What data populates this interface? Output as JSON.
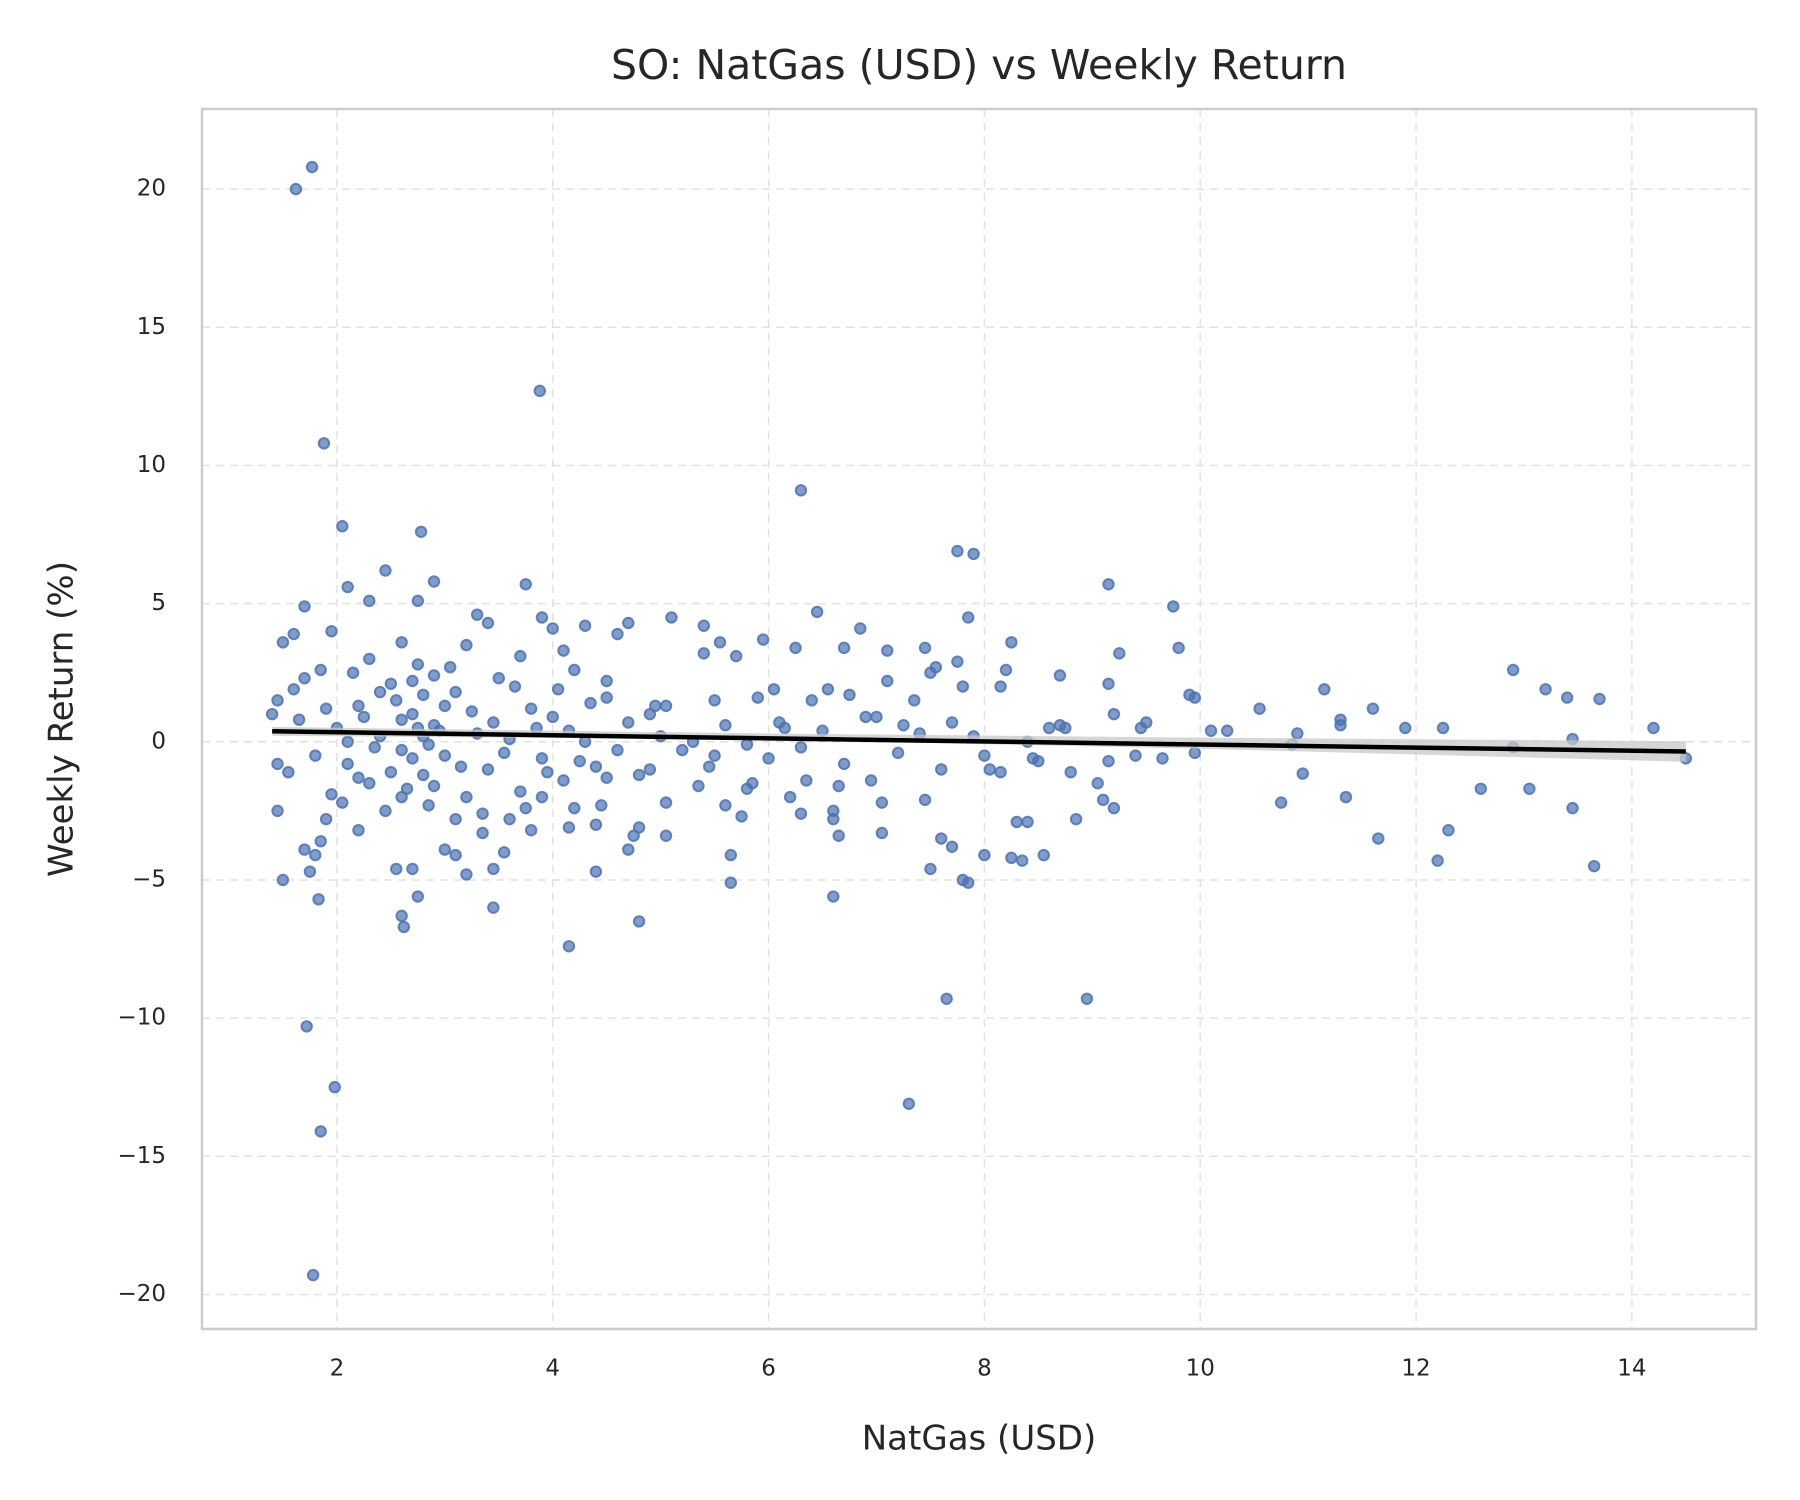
{
  "chart_data": {
    "type": "scatter",
    "title": "SO: NatGas (USD) vs Weekly Return",
    "xlabel": "NatGas (USD)",
    "ylabel": "Weekly Return (%)",
    "xlim": [
      0.75,
      15.15
    ],
    "ylim": [
      -21.25,
      22.9
    ],
    "xticks": [
      2,
      4,
      6,
      8,
      10,
      12,
      14
    ],
    "yticks": [
      {
        "value": -20,
        "label": "−20"
      },
      {
        "value": -15,
        "label": "−15"
      },
      {
        "value": -10,
        "label": "−10"
      },
      {
        "value": -5,
        "label": "−5"
      },
      0,
      5,
      10,
      15,
      20
    ],
    "grid": true,
    "series": [
      {
        "color": "#4c72b0",
        "x": [
          1.62,
          1.77,
          3.88,
          1.88,
          2.05,
          2.78,
          6.3,
          7.75,
          7.9,
          9.15,
          3.75,
          1.72,
          1.98,
          1.85,
          1.78,
          7.3,
          7.65,
          8.95,
          4.15,
          4.8,
          2.6,
          2.62,
          3.45,
          6.6,
          5.65,
          7.8,
          7.85,
          1.83,
          13.65,
          12.2,
          8.25,
          8.35,
          8.55,
          9.75,
          9.8,
          12.9,
          13.2,
          11.15,
          13.4,
          13.7,
          14.2,
          14.5,
          13.45,
          13.45,
          13.05,
          12.9,
          12.6,
          12.3,
          12.25,
          11.9,
          11.6,
          11.65,
          11.35,
          11.3,
          11.3,
          10.95,
          10.9,
          10.85,
          10.75,
          10.55,
          10.25,
          10.1,
          9.95,
          9.95,
          9.9,
          9.65,
          9.5,
          9.4,
          9.45,
          9.25,
          9.2,
          9.15,
          9.15,
          9.2,
          9.1,
          9.05,
          8.85,
          8.8,
          8.7,
          8.7,
          8.75,
          8.6,
          8.5,
          8.45,
          8.4,
          8.3,
          8.4,
          8.25,
          8.2,
          8.15,
          8.15,
          8.05,
          8.0,
          8.0,
          7.85,
          7.8,
          7.75,
          7.7,
          7.7,
          7.6,
          7.55,
          7.5,
          7.5,
          7.45,
          7.45,
          7.35,
          7.25,
          7.1,
          7.1,
          7.0,
          7.05,
          7.05,
          6.95,
          6.85,
          6.75,
          6.7,
          6.65,
          6.65,
          6.6,
          6.6,
          6.55,
          6.45,
          6.4,
          6.35,
          6.3,
          6.25,
          6.2,
          6.15,
          6.05,
          6.0,
          5.95,
          5.9,
          5.85,
          5.8,
          5.75,
          5.7,
          5.65,
          5.6,
          5.55,
          5.5,
          5.5,
          5.45,
          5.4,
          5.4,
          5.35,
          5.2,
          5.1,
          5.05,
          5.05,
          5.05,
          4.95,
          4.9,
          4.8,
          4.75,
          4.7,
          4.7,
          4.6,
          4.5,
          4.45,
          4.4,
          4.3,
          4.2,
          4.15,
          4.0,
          3.9,
          3.8,
          3.6,
          3.55,
          3.45,
          3.4,
          3.3,
          3.2,
          3.1,
          3.0,
          2.9,
          2.75,
          2.75,
          2.7,
          2.55,
          2.45,
          2.3,
          2.1,
          1.95,
          1.7,
          1.6,
          1.5,
          1.5,
          1.45,
          1.45,
          1.4,
          1.45,
          1.6,
          1.7,
          1.8,
          1.85,
          1.9,
          1.75,
          2.0,
          2.1,
          2.2,
          2.3,
          2.4,
          2.5,
          2.6,
          2.7,
          2.8,
          2.9,
          3.0,
          3.1,
          3.2,
          3.3,
          3.4,
          3.5,
          3.6,
          3.7,
          3.8,
          3.9,
          4.0,
          4.1,
          4.2,
          4.3,
          4.4,
          4.5,
          2.05,
          2.15,
          2.25,
          2.35,
          2.45,
          2.55,
          2.65,
          2.75,
          2.85,
          2.95,
          3.05,
          3.15,
          3.25,
          3.35,
          3.45,
          3.55,
          3.65,
          3.75,
          3.85,
          3.95,
          4.05,
          4.15,
          4.25,
          4.35,
          2.6,
          2.7,
          2.8,
          2.9,
          2.8,
          2.7,
          2.9,
          2.6,
          2.85,
          2.75,
          3.0,
          3.1,
          2.5,
          2.4,
          2.3,
          2.2,
          2.1,
          1.9,
          1.8,
          1.7,
          1.65,
          1.55,
          1.85,
          1.95,
          4.6,
          4.7,
          4.8,
          4.9,
          5.0,
          5.3,
          5.6,
          5.8,
          6.1,
          6.3,
          6.5,
          6.7,
          6.9,
          7.2,
          7.4,
          7.6,
          7.9,
          3.2,
          3.7,
          4.1,
          4.4,
          2.2,
          2.6,
          3.35,
          3.9,
          4.5
        ],
        "values": [
          20.0,
          20.8,
          12.7,
          10.8,
          7.8,
          7.6,
          9.1,
          6.9,
          6.8,
          5.7,
          5.7,
          -10.3,
          -12.5,
          -14.1,
          -19.3,
          -13.1,
          -9.3,
          -9.3,
          -7.4,
          -6.5,
          -6.3,
          -6.7,
          -6.0,
          -5.6,
          -5.1,
          -5.0,
          -5.1,
          -5.7,
          -4.5,
          -4.3,
          -4.2,
          -4.3,
          -4.1,
          4.9,
          3.4,
          2.6,
          1.9,
          1.9,
          1.6,
          1.55,
          0.5,
          -0.6,
          0.1,
          -2.4,
          -1.7,
          -0.2,
          -1.7,
          -3.2,
          0.5,
          0.5,
          1.2,
          -3.5,
          -2.0,
          0.6,
          0.8,
          -1.15,
          0.3,
          -0.1,
          -2.2,
          1.2,
          0.4,
          0.4,
          -0.4,
          1.6,
          1.7,
          -0.6,
          0.7,
          -0.5,
          0.5,
          3.2,
          1.0,
          2.1,
          -0.7,
          -2.4,
          -2.1,
          -1.5,
          -2.8,
          -1.1,
          2.4,
          0.6,
          0.5,
          0.5,
          -0.7,
          -0.6,
          0.0,
          -2.9,
          -2.9,
          3.6,
          2.6,
          2.0,
          -1.1,
          -1.0,
          -0.5,
          -4.1,
          4.5,
          2.0,
          2.9,
          0.7,
          -3.8,
          -3.5,
          2.7,
          2.5,
          -4.6,
          3.4,
          -2.1,
          1.5,
          0.6,
          3.3,
          2.2,
          0.9,
          -2.2,
          -3.3,
          -1.4,
          4.1,
          1.7,
          3.4,
          -3.4,
          -1.6,
          -2.5,
          -2.8,
          1.9,
          4.7,
          1.5,
          -1.4,
          -2.6,
          3.4,
          -2.0,
          0.5,
          1.9,
          -0.6,
          3.7,
          1.6,
          -1.5,
          -1.7,
          -2.7,
          3.1,
          -4.1,
          -2.3,
          3.6,
          1.5,
          -0.5,
          -0.9,
          4.2,
          3.2,
          -1.6,
          -0.3,
          4.5,
          1.3,
          -2.2,
          -3.4,
          1.3,
          -1.0,
          -3.1,
          -3.4,
          -3.9,
          4.3,
          3.9,
          -1.3,
          -2.3,
          -4.7,
          4.2,
          -2.4,
          -3.1,
          4.1,
          4.5,
          -3.2,
          -2.8,
          -4.0,
          -4.6,
          4.3,
          4.6,
          -4.8,
          -4.1,
          -3.9,
          5.8,
          5.1,
          -5.6,
          -4.6,
          -4.6,
          6.2,
          5.1,
          5.6,
          4.0,
          4.9,
          3.9,
          3.6,
          -5.0,
          -2.5,
          -0.8,
          1.0,
          1.5,
          1.9,
          -3.9,
          -4.1,
          -3.6,
          -2.8,
          -4.7,
          0.5,
          -0.8,
          1.3,
          -1.5,
          0.2,
          2.1,
          -0.3,
          1.0,
          -1.2,
          0.6,
          -0.5,
          1.8,
          -2.0,
          0.3,
          -1.0,
          2.3,
          0.1,
          -1.8,
          1.2,
          -0.6,
          0.9,
          -1.4,
          2.6,
          0.0,
          -0.9,
          1.6,
          -2.2,
          2.5,
          0.9,
          -0.2,
          -2.5,
          1.5,
          -1.7,
          2.8,
          -2.3,
          0.4,
          2.7,
          -0.9,
          1.1,
          -2.6,
          0.7,
          -0.4,
          2.0,
          -2.4,
          0.5,
          -1.1,
          1.9,
          0.4,
          -0.7,
          1.4,
          0.8,
          -0.6,
          0.2,
          -1.6,
          1.7,
          2.2,
          2.4,
          -2.0,
          -0.1,
          0.5,
          1.3,
          -2.8,
          -1.1,
          1.8,
          3.0,
          -1.3,
          0.0,
          1.2,
          -0.5,
          2.3,
          0.8,
          -1.1,
          2.6,
          -1.9,
          -0.3,
          0.7,
          -1.2,
          1.0,
          0.2,
          0.0,
          0.6,
          -0.1,
          0.7,
          -0.2,
          0.4,
          -0.8,
          0.9,
          -0.4,
          0.3,
          -1.0,
          0.2,
          3.5,
          3.1,
          3.3,
          -3.0,
          -3.2,
          3.6,
          -3.3,
          -2.0,
          2.2
        ]
      }
    ],
    "regression": {
      "color": "#000000",
      "x": [
        1.4,
        14.5
      ],
      "values": [
        0.38,
        -0.35
      ],
      "band_color": "#c8c8c8",
      "band_x": [
        1.4,
        6,
        10,
        14.5
      ],
      "band_lower": [
        0.22,
        0.08,
        -0.25,
        -0.72
      ],
      "band_upper": [
        0.54,
        0.3,
        0.15,
        0.02
      ]
    }
  }
}
